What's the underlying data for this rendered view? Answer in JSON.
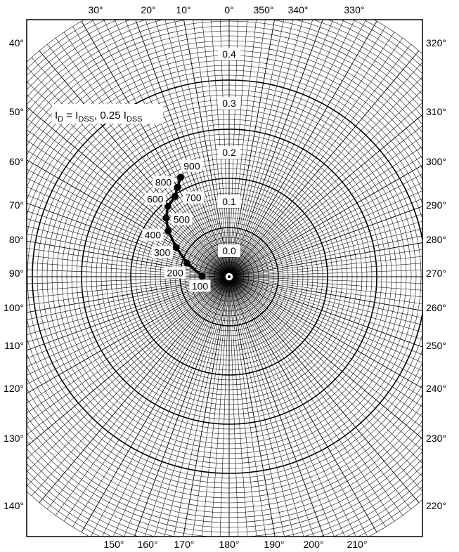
{
  "chart_data": {
    "type": "scatter",
    "coordinate_system": "polar",
    "grid": true,
    "angle_unit": "degrees",
    "angle_ticks_top": [
      "30°",
      "20°",
      "10°",
      "0°",
      "350°",
      "340°",
      "330°"
    ],
    "angle_ticks_bottom": [
      "150°",
      "160°",
      "170°",
      "180°",
      "190°",
      "200°",
      "210°"
    ],
    "angle_ticks_left": [
      "40°",
      "50°",
      "60°",
      "70°",
      "80°",
      "90°",
      "100°",
      "110°",
      "120°",
      "130°",
      "140°"
    ],
    "angle_ticks_right": [
      "320°",
      "310°",
      "300°",
      "290°",
      "280°",
      "270°",
      "260°",
      "250°",
      "240°",
      "230°",
      "220°"
    ],
    "radius_ticks": [
      0.0,
      0.1,
      0.2,
      0.3,
      0.4
    ],
    "radius_tick_labels": [
      "0.0",
      "0.1",
      "0.2",
      "0.3",
      "0.4"
    ],
    "series_label": {
      "i": "I",
      "d": "D",
      "eq": " = I",
      "dss": "DSS",
      "comma": ", 0.25 I",
      "dss2": "DSS"
    },
    "series": [
      {
        "points": [
          {
            "label": "100",
            "r": 0.055,
            "angle": 89
          },
          {
            "label": "200",
            "r": 0.09,
            "angle": 72
          },
          {
            "label": "300",
            "r": 0.123,
            "angle": 61
          },
          {
            "label": "400",
            "r": 0.155,
            "angle": 53
          },
          {
            "label": "500",
            "r": 0.175,
            "angle": 47
          },
          {
            "label": "600",
            "r": 0.19,
            "angle": 41
          },
          {
            "label": "700",
            "r": 0.197,
            "angle": 34
          },
          {
            "label": "800",
            "r": 0.21,
            "angle": 30
          },
          {
            "label": "900",
            "r": 0.225,
            "angle": 26
          }
        ]
      }
    ]
  }
}
